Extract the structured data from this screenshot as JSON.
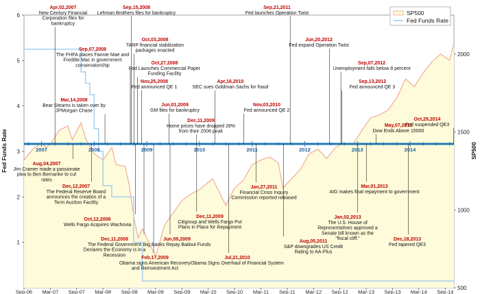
{
  "chart_data": {
    "type": "line",
    "xlabel": "",
    "ylabel": "Fed Funds Rate",
    "y2label": "SP500",
    "ylim": [
      0,
      6
    ],
    "y2lim": [
      500,
      2250
    ],
    "yticks": [
      1,
      2,
      3,
      4,
      5,
      6
    ],
    "y2ticks": [
      500,
      1000,
      1500,
      2000
    ],
    "xlim": [
      "2006-09",
      "2014-11"
    ],
    "x_tick_labels": [
      "Sep-06",
      "Mar-07",
      "Sep-07",
      "Mar-08",
      "Sep-08",
      "Mar-09",
      "Sep-09",
      "Mar-10",
      "Sep-10",
      "Mar-11",
      "Sep-11",
      "Mar-12",
      "Sep-12",
      "Mar-13",
      "Sep-13",
      "Mar-14",
      "Sep-14"
    ],
    "timeline_years": [
      "2007",
      "2008",
      "2009",
      "2010",
      "2011",
      "2012",
      "2013",
      "2014"
    ],
    "legend": {
      "placement": "top-right",
      "entries": [
        "SP500",
        "Fed Funds Rate"
      ]
    },
    "colors": {
      "sp500": "#f0a58f",
      "fedfunds": "#a9d2ee",
      "area": "#fdfbd9",
      "timeline": "#1f77b4",
      "event_date": "#c00000"
    },
    "series": [
      {
        "name": "SP500",
        "axis": "right",
        "x": [
          "2006-09",
          "2006-11",
          "2007-01",
          "2007-02",
          "2007-03",
          "2007-05",
          "2007-07",
          "2007-08",
          "2007-10",
          "2007-11",
          "2008-01",
          "2008-03",
          "2008-05",
          "2008-06",
          "2008-08",
          "2008-09",
          "2008-10",
          "2008-11",
          "2008-12",
          "2009-01",
          "2009-03",
          "2009-05",
          "2009-07",
          "2009-09",
          "2009-11",
          "2010-01",
          "2010-04",
          "2010-07",
          "2010-09",
          "2010-11",
          "2011-01",
          "2011-03",
          "2011-05",
          "2011-07",
          "2011-08",
          "2011-10",
          "2011-12",
          "2012-02",
          "2012-04",
          "2012-06",
          "2012-08",
          "2012-10",
          "2012-12",
          "2013-02",
          "2013-04",
          "2013-06",
          "2013-08",
          "2013-10",
          "2013-12",
          "2014-02",
          "2014-04",
          "2014-06",
          "2014-08",
          "2014-10",
          "2014-11"
        ],
        "values": [
          1320,
          1390,
          1430,
          1400,
          1420,
          1510,
          1540,
          1450,
          1560,
          1460,
          1360,
          1320,
          1400,
          1290,
          1280,
          1160,
          960,
          820,
          880,
          820,
          700,
          900,
          980,
          1060,
          1100,
          1130,
          1200,
          1030,
          1140,
          1190,
          1290,
          1320,
          1340,
          1300,
          1140,
          1200,
          1260,
          1360,
          1390,
          1330,
          1400,
          1430,
          1420,
          1510,
          1590,
          1610,
          1640,
          1720,
          1840,
          1790,
          1880,
          1950,
          2000,
          1960,
          2070
        ]
      },
      {
        "name": "Fed Funds Rate",
        "axis": "left",
        "x": [
          "2006-09",
          "2007-09",
          "2007-10",
          "2007-11",
          "2007-12",
          "2008-01",
          "2008-02",
          "2008-03",
          "2008-04",
          "2008-05",
          "2008-10",
          "2008-11",
          "2008-12",
          "2014-11"
        ],
        "values": [
          5.25,
          5.25,
          4.75,
          4.5,
          4.25,
          3.5,
          3.0,
          2.25,
          2.25,
          2.0,
          1.0,
          1.0,
          0.15,
          0.1
        ]
      }
    ],
    "events_above": [
      {
        "date": "Apr,02,2007",
        "text": "New Century Financial Corporation files for bankruptcy"
      },
      {
        "date": "Sep,07,2008",
        "text": "The FHFA places Fannie Mae and Freddie Mac in government conservatorship"
      },
      {
        "date": "Mar,14,2008",
        "text": "Bear Stearns is taken over by JPMorgan Chase"
      },
      {
        "date": "Sep,15,2008",
        "text": "Lehman Brothers files for bankruptcy"
      },
      {
        "date": "Oct,03,2008",
        "text": "TARP financial stabilization packages enacted"
      },
      {
        "date": "Oct,27,2008",
        "text": "Fed Launches Commercial Paper Funding Facility"
      },
      {
        "date": "Nov,25,2008",
        "text": "Fed announced QE 1"
      },
      {
        "date": "Jun,01,2009",
        "text": "GM files for bankruptcy"
      },
      {
        "date": "Dec,11,2009",
        "text": "Home prices have dropped 28% from their 2006 peak"
      },
      {
        "date": "Apr,16,2010",
        "text": "SEC sues Goldman Sachs for fraud"
      },
      {
        "date": "Nov,03,2010",
        "text": "Fed announced QE 2"
      },
      {
        "date": "Sep,21,2011",
        "text": "Fed launches Operation Twist"
      },
      {
        "date": "Jun,20,2012",
        "text": "Fed expand  Operation Twist"
      },
      {
        "date": "Sep,07,2012",
        "text": "Unemployment falls below 8 percent"
      },
      {
        "date": "Sep,13,2012",
        "text": "Fed announced QE 3"
      },
      {
        "date": "May,07,2013",
        "text": "Dow Ends Above 15000"
      },
      {
        "date": "Oct,29,2014",
        "text": "Fed suspended QE3"
      }
    ],
    "events_below": [
      {
        "date": "Aug,04,2007",
        "text": "Jim Cramer made a passionate plea to Ben Bernanke to cut rates"
      },
      {
        "date": "Dec,12,2007",
        "text": "The Federal Reserve Board announces the creation of a Term Auction Facility"
      },
      {
        "date": "Oct,12,2008",
        "text": "Wells Fargo Acquires Wachovia"
      },
      {
        "date": "Dec,11,2008",
        "text": "The Federal Government Declares the Economy is in a Recession"
      },
      {
        "date": "Feb,17,2009",
        "text": "Obama signs American Recovery and Reinvestment Act"
      },
      {
        "date": "Jun,09,2009",
        "text": "Big Banks Repay Bailout Funds"
      },
      {
        "date": "Dec,11,2009",
        "text": "Citigroup and Wells Fargo Put Plans in Place for Repayment"
      },
      {
        "date": "Jul,21,2010",
        "text": "Obama Signs Overhaul of Financial System"
      },
      {
        "date": "Jan,27,2011",
        "text": "Financial Crisis Inquiry Commission reported released"
      },
      {
        "date": "Aug,05,2011",
        "text": "S&P downgrades US Credit Rating to AA-Plus"
      },
      {
        "date": "Jan,02,2013",
        "text": "The U.S. House of Representatives approved a Senate bill known as the \"fiscal cliff.\""
      },
      {
        "date": "Mar,01,2013",
        "text": "AIG makes final repayment to government"
      },
      {
        "date": "Dec,18,2013",
        "text": "Fed tapered QE3"
      }
    ]
  }
}
